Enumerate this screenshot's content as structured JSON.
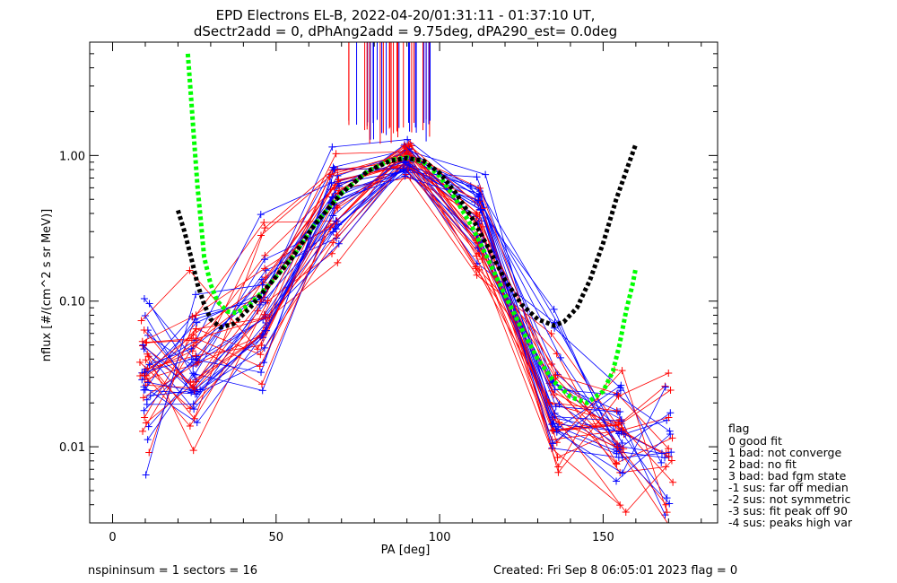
{
  "chart_data": {
    "type": "line",
    "title": "EPD Electrons EL-B, 2022-04-20/01:31:11 - 01:37:10 UT,",
    "subtitle": "dSectr2add = 0, dPhAng2add = 9.75deg, dPA290_est=    0.0deg",
    "xlabel": "PA [deg]",
    "ylabel": "nflux [#/(cm^2 s sr MeV)]",
    "xlim": [
      -7,
      185
    ],
    "ylim": [
      0.003,
      6.0
    ],
    "yscale": "log",
    "xticks": [
      0,
      50,
      100,
      150
    ],
    "xtick_labels": [
      "0",
      "50",
      "100",
      "150"
    ],
    "yticks": [
      0.01,
      0.1,
      1.0
    ],
    "ytick_labels": [
      "0.01",
      "0.10",
      "1.00"
    ],
    "grid": false,
    "series": [
      {
        "name": "green-fit",
        "color": "#00ff00",
        "style": "dashed",
        "x": [
          23,
          24,
          25,
          26,
          27,
          28,
          30,
          32,
          35,
          38,
          42,
          48,
          55,
          62,
          70,
          78,
          85,
          90,
          95,
          100,
          105,
          110,
          115,
          120,
          125,
          130,
          135,
          140,
          145,
          150,
          153,
          155,
          157,
          159,
          160
        ],
        "y": [
          5.0,
          2.5,
          1.2,
          0.6,
          0.35,
          0.2,
          0.13,
          0.1,
          0.085,
          0.083,
          0.095,
          0.13,
          0.2,
          0.34,
          0.55,
          0.78,
          0.93,
          0.97,
          0.9,
          0.72,
          0.5,
          0.32,
          0.19,
          0.11,
          0.065,
          0.04,
          0.028,
          0.022,
          0.02,
          0.024,
          0.033,
          0.05,
          0.085,
          0.13,
          0.17
        ]
      },
      {
        "name": "black-fit",
        "color": "#000000",
        "style": "dashed",
        "x": [
          20,
          22,
          24,
          26,
          28,
          30,
          33,
          37,
          42,
          48,
          55,
          62,
          70,
          78,
          85,
          90,
          95,
          100,
          105,
          110,
          115,
          120,
          125,
          130,
          135,
          138,
          142,
          146,
          150,
          154,
          158,
          160
        ],
        "y": [
          0.42,
          0.3,
          0.2,
          0.13,
          0.095,
          0.075,
          0.066,
          0.07,
          0.09,
          0.13,
          0.2,
          0.34,
          0.55,
          0.78,
          0.92,
          0.96,
          0.92,
          0.76,
          0.55,
          0.37,
          0.23,
          0.14,
          0.095,
          0.075,
          0.068,
          0.072,
          0.09,
          0.14,
          0.25,
          0.5,
          0.9,
          1.2
        ]
      }
    ],
    "legend": {
      "title": "flag",
      "items": [
        " 0 good fit",
        " 1 bad: not converge",
        " 2 bad: no fit",
        " 3 bad: bad fgm state",
        "-1 sus: far off median",
        "-2 sus: not symmetric",
        "-3 sus: fit peak off 90",
        "-4 sus: peaks high var"
      ],
      "placement": "right"
    },
    "scatter_colors": {
      "red": "#ff0000",
      "blue": "#0000ff"
    }
  },
  "footer": {
    "left": "nspininsum =  1  sectors = 16",
    "right": "Created: Fri Sep  8 06:05:01 2023   flag = 0"
  }
}
